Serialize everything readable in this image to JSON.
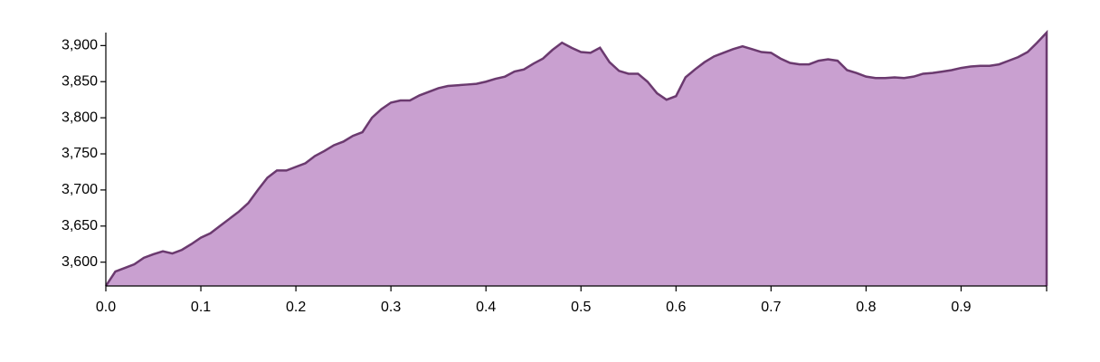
{
  "chart_data": {
    "type": "area",
    "x": [
      0,
      0.01,
      0.02,
      0.03,
      0.04,
      0.05,
      0.06,
      0.07,
      0.08,
      0.09,
      0.1,
      0.11,
      0.12,
      0.13,
      0.14,
      0.15,
      0.16,
      0.17,
      0.18,
      0.19,
      0.2,
      0.21,
      0.22,
      0.23,
      0.24,
      0.25,
      0.26,
      0.27,
      0.28,
      0.29,
      0.3,
      0.31,
      0.32,
      0.33,
      0.34,
      0.35,
      0.36,
      0.37,
      0.38,
      0.39,
      0.4,
      0.41,
      0.42,
      0.43,
      0.44,
      0.45,
      0.46,
      0.47,
      0.48,
      0.49,
      0.5,
      0.51,
      0.52,
      0.53,
      0.54,
      0.55,
      0.56,
      0.57,
      0.58,
      0.59,
      0.6,
      0.61,
      0.62,
      0.63,
      0.64,
      0.65,
      0.66,
      0.67,
      0.68,
      0.69,
      0.7,
      0.71,
      0.72,
      0.73,
      0.74,
      0.75,
      0.76,
      0.77,
      0.78,
      0.79,
      0.8,
      0.81,
      0.82,
      0.83,
      0.84,
      0.85,
      0.86,
      0.87,
      0.88,
      0.89,
      0.9,
      0.91,
      0.92,
      0.93,
      0.94,
      0.95,
      0.96,
      0.97,
      0.98,
      0.99
    ],
    "values": [
      3567,
      3587,
      3592,
      3597,
      3606,
      3611,
      3615,
      3612,
      3617,
      3625,
      3634,
      3640,
      3650,
      3660,
      3670,
      3682,
      3700,
      3717,
      3727,
      3727,
      3732,
      3737,
      3747,
      3754,
      3762,
      3767,
      3775,
      3780,
      3800,
      3812,
      3821,
      3824,
      3824,
      3831,
      3836,
      3841,
      3844,
      3845,
      3846,
      3847,
      3850,
      3854,
      3857,
      3864,
      3867,
      3875,
      3882,
      3894,
      3904,
      3897,
      3891,
      3890,
      3897,
      3877,
      3865,
      3861,
      3861,
      3850,
      3834,
      3825,
      3830,
      3856,
      3867,
      3877,
      3885,
      3890,
      3895,
      3899,
      3895,
      3891,
      3890,
      3882,
      3876,
      3874,
      3874,
      3879,
      3881,
      3879,
      3866,
      3862,
      3857,
      3855,
      3855,
      3856,
      3855,
      3857,
      3861,
      3862,
      3864,
      3866,
      3869,
      3871,
      3872,
      3872,
      3874,
      3879,
      3884,
      3891,
      3904,
      3918
    ],
    "color": "#c9a0d0",
    "line_color": "#6b3a6f",
    "xlim": [
      0,
      0.99
    ],
    "xticks": [
      {
        "value": 0,
        "label": "0.0"
      },
      0.1,
      0.2,
      0.3,
      0.4,
      0.5,
      0.6,
      0.7,
      0.8,
      0.9
    ],
    "ylim": [
      3567,
      3918
    ],
    "yticks": [
      {
        "value": 3600,
        "label": "3,600"
      },
      {
        "value": 3650,
        "label": "3,650"
      },
      {
        "value": 3700,
        "label": "3,700"
      },
      {
        "value": 3750,
        "label": "3,750"
      },
      {
        "value": 3800,
        "label": "3,800"
      },
      {
        "value": 3850,
        "label": "3,850"
      },
      {
        "value": 3900,
        "label": "3,900"
      }
    ]
  }
}
